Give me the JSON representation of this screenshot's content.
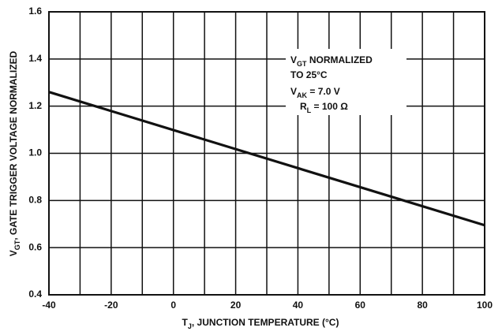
{
  "chart_data": {
    "type": "line",
    "y_label": [
      {
        "text": "V"
      },
      {
        "sub": "GT"
      },
      {
        "text": ", GATE TRIGGER VOLTAGE NORMALIZED"
      }
    ],
    "x_label": [
      {
        "text": "T"
      },
      {
        "sub": "J"
      },
      {
        "text": ", JUNCTION TEMPERATURE (°C)"
      }
    ],
    "annotation": [
      [
        {
          "text": "V"
        },
        {
          "sub": "GT"
        },
        {
          "text": " NORMALIZED"
        }
      ],
      [
        {
          "text": "TO 25°C"
        }
      ],
      [
        {
          "text": "V"
        },
        {
          "sub": "AK"
        },
        {
          "text": " = 7.0 V"
        }
      ],
      [
        {
          "text": "R"
        },
        {
          "sub": "L"
        },
        {
          "text": " = 100 Ω"
        }
      ]
    ],
    "x": [
      -40,
      100
    ],
    "series": [
      {
        "color": "#111111",
        "values": [
          1.26,
          0.695
        ]
      }
    ],
    "xlim": [
      -40,
      100
    ],
    "xticks": [
      -40,
      -20,
      0,
      20,
      40,
      60,
      80,
      100
    ],
    "x_minor_ticks": [
      -30,
      -10,
      10,
      30,
      50,
      70,
      90
    ],
    "ylim": [
      0.4,
      1.6
    ],
    "yticks": [
      1.6,
      1.4,
      1.2,
      {
        "value": 1,
        "label": "1.0"
      },
      0.8,
      0.6,
      0.4
    ],
    "grid": true
  }
}
